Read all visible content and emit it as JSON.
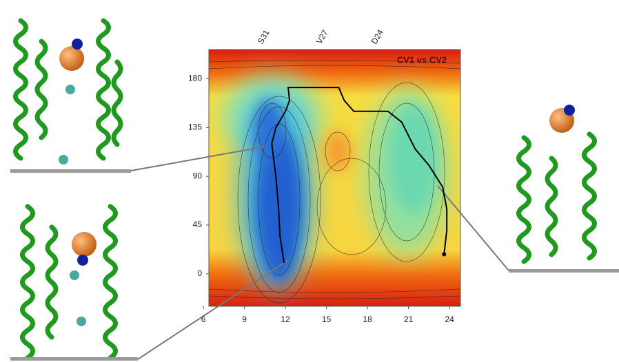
{
  "chart_data": {
    "type": "contour-path",
    "title": "CV1 vs CV2",
    "residue_labels": [
      "S31",
      "V27",
      "D24"
    ],
    "xlim": [
      6.4,
      24.8
    ],
    "ylim": [
      -30,
      207
    ],
    "xticks": [
      6,
      9,
      12,
      15,
      18,
      21,
      24
    ],
    "yticks": [
      0,
      45,
      90,
      135,
      180
    ],
    "series": [
      {
        "color": "#000000",
        "x": [
          11.9,
          11.6,
          11.5,
          11.3,
          11.1,
          11.0,
          11.3,
          12.0,
          12.3,
          12.2,
          15.9,
          16.3,
          17.0,
          19.5,
          20.5,
          21.5,
          22.5,
          23.5,
          23.8,
          23.8,
          23.6
        ],
        "y": [
          10,
          35,
          60,
          90,
          110,
          120,
          135,
          150,
          160,
          172,
          172,
          160,
          150,
          150,
          140,
          115,
          100,
          80,
          60,
          40,
          18
        ]
      }
    ]
  }
}
